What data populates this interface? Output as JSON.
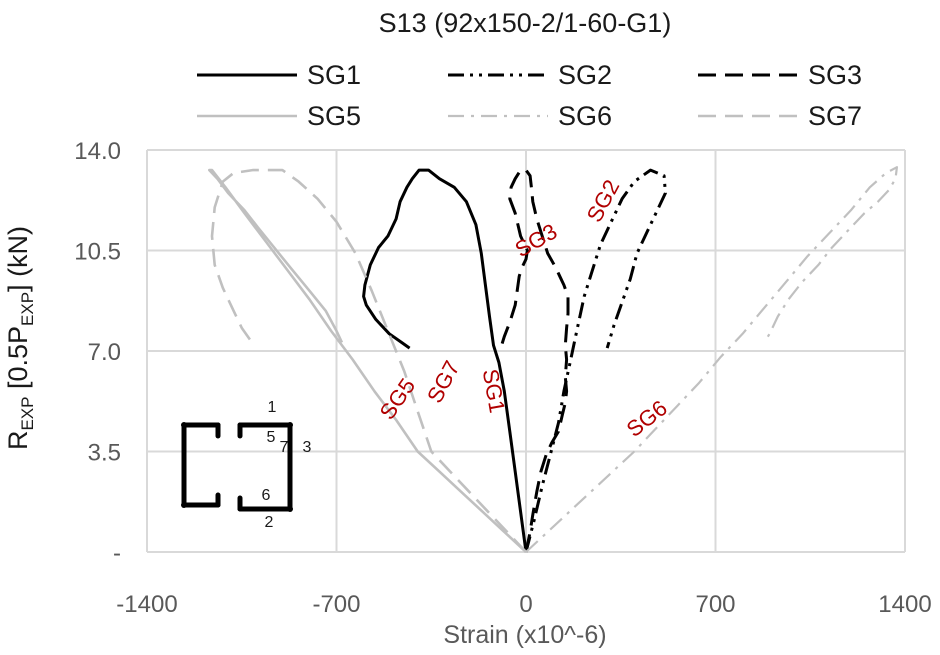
{
  "chart_data": {
    "type": "line",
    "title": "S13 (92x150-2/1-60-G1)",
    "xlabel": "Strain (x10^-6)",
    "ylabel": {
      "parts": [
        "R",
        "EXP",
        " [0.5P",
        "EXP",
        "] (kN)"
      ]
    },
    "xlim": [
      -1400,
      1400
    ],
    "ylim": [
      0,
      14
    ],
    "x_ticks": [
      "-1400",
      "-700",
      "0",
      "700",
      "1400"
    ],
    "y_ticks": [
      "-",
      "3.5",
      "7.0",
      "10.5",
      "14.0"
    ],
    "grid": true,
    "legend_position": "top",
    "series": [
      {
        "name": "SG1",
        "color": "#000000",
        "dash": "solid",
        "width": 3,
        "points": [
          [
            0,
            0
          ],
          [
            -20,
            1.4
          ],
          [
            -40,
            2.8
          ],
          [
            -60,
            4.2
          ],
          [
            -80,
            5.6
          ],
          [
            -100,
            6.6
          ],
          [
            -120,
            7.2
          ],
          [
            -135,
            8.2
          ],
          [
            -150,
            9.3
          ],
          [
            -165,
            10.4
          ],
          [
            -185,
            11.4
          ],
          [
            -220,
            12.2
          ],
          [
            -265,
            12.7
          ],
          [
            -320,
            13.0
          ],
          [
            -360,
            13.3
          ],
          [
            -395,
            13.3
          ],
          [
            -420,
            13.0
          ],
          [
            -440,
            12.7
          ],
          [
            -465,
            12.2
          ],
          [
            -480,
            11.6
          ],
          [
            -510,
            11.0
          ],
          [
            -545,
            10.6
          ],
          [
            -575,
            10.0
          ],
          [
            -595,
            9.3
          ],
          [
            -600,
            8.9
          ],
          [
            -590,
            8.6
          ],
          [
            -555,
            8.1
          ],
          [
            -505,
            7.6
          ],
          [
            -460,
            7.3
          ],
          [
            -430,
            7.1
          ]
        ]
      },
      {
        "name": "SG2",
        "color": "#000000",
        "dash": "dashdotdot",
        "width": 3,
        "points": [
          [
            0,
            0
          ],
          [
            30,
            1.1
          ],
          [
            60,
            2.3
          ],
          [
            90,
            3.4
          ],
          [
            120,
            4.5
          ],
          [
            140,
            5.6
          ],
          [
            165,
            6.7
          ],
          [
            190,
            7.8
          ],
          [
            215,
            8.9
          ],
          [
            245,
            9.8
          ],
          [
            275,
            10.7
          ],
          [
            320,
            11.6
          ],
          [
            355,
            12.3
          ],
          [
            400,
            12.9
          ],
          [
            460,
            13.3
          ],
          [
            510,
            13.1
          ],
          [
            515,
            12.5
          ],
          [
            485,
            11.9
          ],
          [
            450,
            11.2
          ],
          [
            410,
            10.4
          ],
          [
            385,
            9.5
          ],
          [
            355,
            8.7
          ],
          [
            325,
            7.9
          ],
          [
            300,
            7.1
          ]
        ]
      },
      {
        "name": "SG3",
        "color": "#000000",
        "dash": "dashed",
        "width": 3,
        "points": [
          [
            0,
            0
          ],
          [
            15,
            0.7
          ],
          [
            25,
            1.3
          ],
          [
            40,
            2.1
          ],
          [
            55,
            2.8
          ],
          [
            75,
            3.4
          ],
          [
            95,
            3.8
          ],
          [
            120,
            4.2
          ],
          [
            135,
            4.8
          ],
          [
            145,
            5.2
          ],
          [
            150,
            5.6
          ],
          [
            145,
            6.1
          ],
          [
            150,
            6.7
          ],
          [
            145,
            7.2
          ],
          [
            150,
            7.8
          ],
          [
            155,
            8.3
          ],
          [
            155,
            8.9
          ],
          [
            140,
            9.3
          ],
          [
            125,
            9.6
          ],
          [
            110,
            9.9
          ],
          [
            80,
            10.4
          ],
          [
            60,
            11.0
          ],
          [
            40,
            11.6
          ],
          [
            25,
            12.2
          ],
          [
            20,
            12.7
          ],
          [
            15,
            13.1
          ],
          [
            0,
            13.3
          ],
          [
            -20,
            13.3
          ],
          [
            -40,
            13.0
          ],
          [
            -55,
            12.7
          ],
          [
            -60,
            12.3
          ],
          [
            -40,
            11.8
          ],
          [
            -20,
            11.0
          ],
          [
            5,
            10.5
          ],
          [
            0,
            10.2
          ],
          [
            -15,
            9.9
          ],
          [
            -25,
            9.6
          ],
          [
            -40,
            8.6
          ],
          [
            -60,
            8.0
          ],
          [
            -80,
            7.5
          ],
          [
            -90,
            7.2
          ]
        ]
      },
      {
        "name": "SG5",
        "color": "#c0c0c0",
        "dash": "solid",
        "width": 2.6,
        "points": [
          [
            0,
            0
          ],
          [
            -80,
            0.7
          ],
          [
            -160,
            1.4
          ],
          [
            -240,
            2.1
          ],
          [
            -320,
            2.8
          ],
          [
            -400,
            3.5
          ],
          [
            -480,
            4.6
          ],
          [
            -560,
            5.6
          ],
          [
            -640,
            6.7
          ],
          [
            -720,
            7.7
          ],
          [
            -800,
            8.8
          ],
          [
            -880,
            9.8
          ],
          [
            -960,
            10.8
          ],
          [
            -1040,
            11.8
          ],
          [
            -1110,
            12.7
          ],
          [
            -1160,
            13.3
          ],
          [
            -1170,
            13.3
          ],
          [
            -1140,
            13.0
          ],
          [
            -1100,
            12.5
          ],
          [
            -1040,
            11.9
          ],
          [
            -990,
            11.3
          ],
          [
            -930,
            10.6
          ],
          [
            -870,
            9.9
          ],
          [
            -800,
            9.1
          ],
          [
            -740,
            8.4
          ],
          [
            -700,
            7.7
          ],
          [
            -680,
            7.3
          ]
        ]
      },
      {
        "name": "SG6",
        "color": "#c0c0c0",
        "dash": "dashdot",
        "width": 2.2,
        "points": [
          [
            0,
            0
          ],
          [
            80,
            0.7
          ],
          [
            160,
            1.4
          ],
          [
            240,
            2.1
          ],
          [
            320,
            2.8
          ],
          [
            400,
            3.5
          ],
          [
            480,
            4.3
          ],
          [
            560,
            5.1
          ],
          [
            640,
            5.9
          ],
          [
            720,
            6.8
          ],
          [
            800,
            7.6
          ],
          [
            880,
            8.5
          ],
          [
            960,
            9.4
          ],
          [
            1040,
            10.3
          ],
          [
            1120,
            11.1
          ],
          [
            1200,
            11.9
          ],
          [
            1270,
            12.7
          ],
          [
            1330,
            13.2
          ],
          [
            1370,
            13.4
          ],
          [
            1365,
            13.0
          ],
          [
            1340,
            12.6
          ],
          [
            1300,
            12.2
          ],
          [
            1250,
            11.8
          ],
          [
            1190,
            11.2
          ],
          [
            1130,
            10.6
          ],
          [
            1080,
            10.0
          ],
          [
            1020,
            9.4
          ],
          [
            970,
            8.8
          ],
          [
            930,
            8.2
          ],
          [
            900,
            7.6
          ],
          [
            880,
            7.3
          ]
        ]
      },
      {
        "name": "SG7",
        "color": "#c0c0c0",
        "dash": "dashed",
        "width": 2.6,
        "points": [
          [
            0,
            0
          ],
          [
            -70,
            0.7
          ],
          [
            -140,
            1.4
          ],
          [
            -210,
            2.1
          ],
          [
            -280,
            2.8
          ],
          [
            -350,
            3.5
          ],
          [
            -400,
            4.9
          ],
          [
            -450,
            6.3
          ],
          [
            -510,
            7.7
          ],
          [
            -570,
            9.1
          ],
          [
            -630,
            10.4
          ],
          [
            -700,
            11.5
          ],
          [
            -770,
            12.3
          ],
          [
            -840,
            12.9
          ],
          [
            -900,
            13.3
          ],
          [
            -960,
            13.3
          ],
          [
            -1010,
            13.3
          ],
          [
            -1080,
            13.2
          ],
          [
            -1120,
            12.9
          ],
          [
            -1150,
            12.0
          ],
          [
            -1160,
            11.0
          ],
          [
            -1150,
            10.0
          ],
          [
            -1120,
            9.2
          ],
          [
            -1080,
            8.4
          ],
          [
            -1050,
            7.8
          ],
          [
            -1020,
            7.4
          ]
        ]
      }
    ],
    "annotations": [
      {
        "text": "SG1",
        "x": -125,
        "y": 5.6,
        "rotation": 80
      },
      {
        "text": "SG2",
        "x": 290,
        "y": 12.2,
        "rotation": -62
      },
      {
        "text": "SG3",
        "x": 40,
        "y": 10.8,
        "rotation": -30
      },
      {
        "text": "SG5",
        "x": -470,
        "y": 5.3,
        "rotation": -55
      },
      {
        "text": "SG6",
        "x": 450,
        "y": 4.6,
        "rotation": -38
      },
      {
        "text": "SG7",
        "x": -300,
        "y": 5.9,
        "rotation": -62
      }
    ]
  },
  "inset": {
    "labels": [
      "1",
      "5",
      "7",
      "3",
      "6",
      "2"
    ]
  }
}
